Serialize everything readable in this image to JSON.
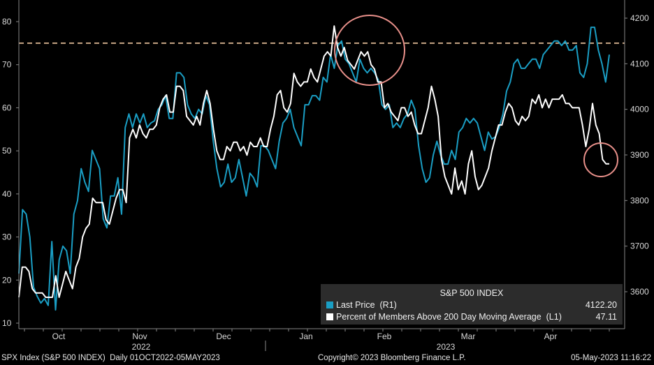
{
  "chart_data": {
    "type": "line",
    "title": "S&P 500 INDEX",
    "x_axis": {
      "month_labels": [
        "Oct",
        "Nov",
        "Dec",
        "Jan",
        "Feb",
        "Mar",
        "Apr"
      ],
      "year_labels": [
        "2022",
        "2023"
      ]
    },
    "y_left": {
      "ticks": [
        "10",
        "20",
        "30",
        "40",
        "50",
        "60",
        "70",
        "80"
      ],
      "range": [
        9,
        83
      ]
    },
    "y_right": {
      "ticks": [
        "3600",
        "3700",
        "3800",
        "3900",
        "4000",
        "4100",
        "4200"
      ],
      "range": [
        3530,
        4212
      ]
    },
    "reference_line": {
      "axis": "left",
      "value": 75,
      "color": "#f0c8a0",
      "style": "dashed"
    },
    "annotations": [
      {
        "shape": "circle",
        "color": "#e8908a",
        "around": "late Jan / early Feb peak"
      },
      {
        "shape": "circle",
        "color": "#e8908a",
        "around": "latest Percent of Members value"
      }
    ],
    "series": [
      {
        "name": "Last Price (R1)",
        "axis": "right",
        "color": "#1a9ec4",
        "last_value": "4122.20",
        "values": [
          3640,
          3780,
          3770,
          3720,
          3610,
          3590,
          3575,
          3585,
          3570,
          3710,
          3560,
          3670,
          3700,
          3690,
          3640,
          3770,
          3800,
          3870,
          3840,
          3820,
          3910,
          3890,
          3870,
          3760,
          3740,
          3810,
          3810,
          3850,
          3770,
          3960,
          3990,
          3960,
          3990,
          3970,
          3990,
          3960,
          3970,
          3975,
          4000,
          4010,
          4030,
          3980,
          3980,
          4080,
          4080,
          4070,
          4010,
          3990,
          3980,
          4000,
          3990,
          4030,
          4010,
          3930,
          3870,
          3830,
          3840,
          3880,
          3840,
          3850,
          3890,
          3850,
          3810,
          3860,
          3850,
          3830,
          3920,
          3920,
          3910,
          3890,
          3870,
          3930,
          3970,
          3980,
          4000,
          3960,
          3940,
          3920,
          4010,
          4010,
          4030,
          4030,
          4020,
          4070,
          4060,
          4120,
          4090,
          4140,
          4150,
          4110,
          4100,
          4080,
          4060,
          4110,
          4090,
          4080,
          4090,
          4080,
          4065,
          4010,
          4000,
          4010,
          3960,
          3970,
          3960,
          3980,
          3990,
          4020,
          4000,
          3920,
          3870,
          3840,
          3850,
          3900,
          3930,
          3900,
          3880,
          3880,
          3910,
          3890,
          3950,
          3960,
          3980,
          3970,
          3980,
          3970,
          3940,
          3910,
          3950,
          3935,
          3940,
          3960,
          3990,
          4040,
          4060,
          4100,
          4110,
          4090,
          4090,
          4100,
          4110,
          4110,
          4090,
          4120,
          4130,
          4140,
          4150,
          4150,
          4140,
          4150,
          4130,
          4130,
          4140,
          4080,
          4070,
          4100,
          4180,
          4180,
          4130,
          4100,
          4060,
          4120
        ]
      },
      {
        "name": "Percent of Members Above 200 Day Moving Average  (L1)",
        "axis": "left",
        "color": "#ffffff",
        "last_value": "47.11",
        "values": [
          16,
          23,
          23,
          22,
          18,
          17,
          17,
          17,
          16,
          16,
          16,
          21,
          16,
          19,
          22,
          20,
          18,
          23,
          25,
          30,
          32,
          33,
          39,
          38,
          38,
          38,
          34,
          33,
          36,
          39,
          41,
          41,
          38,
          53,
          55,
          53,
          56,
          54,
          53,
          55,
          55,
          56,
          60,
          62,
          63,
          59,
          59,
          65,
          65,
          64,
          58,
          57,
          56,
          58,
          56,
          61,
          64,
          61,
          55,
          50,
          48,
          48,
          51,
          50,
          52,
          52,
          50,
          51,
          49,
          52,
          51,
          51,
          53,
          51,
          51,
          55,
          58,
          63,
          64,
          60,
          59,
          61,
          68,
          66,
          65,
          66,
          66,
          69,
          67,
          66,
          69,
          72,
          73,
          72,
          79,
          74,
          72,
          74,
          71,
          70,
          69,
          71,
          73,
          72,
          73,
          70,
          69,
          66,
          66,
          60,
          61,
          59,
          58,
          57,
          60,
          60,
          58,
          59,
          56,
          54,
          54,
          57,
          60,
          65,
          62,
          58,
          48,
          44,
          42,
          40,
          46,
          41,
          43,
          40,
          47,
          50,
          44,
          41,
          42,
          44,
          46,
          50,
          53,
          56,
          56,
          59,
          61,
          60,
          57,
          56,
          58,
          57,
          58,
          62,
          61,
          63,
          60,
          62,
          60,
          62,
          62,
          62,
          63,
          61,
          61,
          60,
          60,
          60,
          56,
          51,
          55,
          61,
          56,
          54,
          48,
          47,
          47
        ]
      }
    ]
  },
  "legend": {
    "title": "S&P 500 INDEX",
    "items": [
      {
        "label": "Last Price  (R1)",
        "value": "4122.20",
        "color": "#1a9ec4"
      },
      {
        "label": "Percent of Members Above 200 Day Moving Average  (L1)",
        "value": "47.11",
        "color": "#ffffff"
      }
    ]
  },
  "footer": {
    "left": "SPX Index (S&P 500 INDEX)  Daily 01OCT2022-05MAY2023",
    "center": "Copyright© 2023 Bloomberg Finance L.P.",
    "right": "05-May-2023 11:16:22"
  }
}
